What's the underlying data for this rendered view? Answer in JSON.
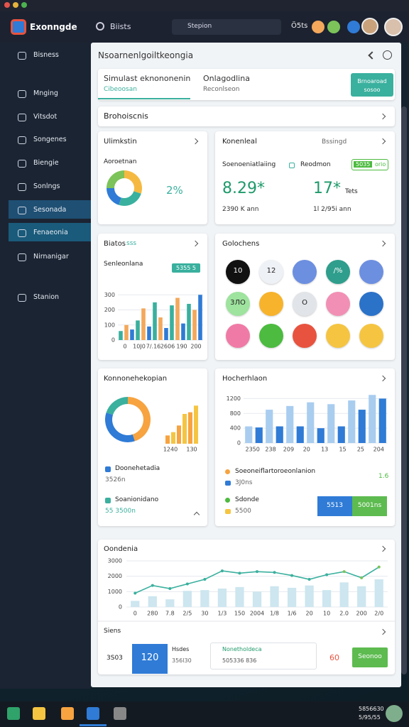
{
  "app": {
    "name": "Exonngde",
    "search": "Biists",
    "dropdown": "Stepion",
    "status": "Ö5ts"
  },
  "sidebar": [
    "Bisness",
    "Mnging",
    "Vitsdot",
    "Songenes",
    "Biengie",
    "Sonlngs",
    "Sesonada",
    "Fenaeonia",
    "Nirnanigar",
    "Stanion"
  ],
  "header": {
    "title": "Nsoarnenlgoiltkeongia"
  },
  "tabs": [
    {
      "title": "Simulast eknononenin",
      "sub": "Cibeoosan"
    },
    {
      "title": "Onlagodlina",
      "sub": "Reconlseon"
    }
  ],
  "tab_button": "Brnoaroad sosoo",
  "section": "Brohoiscnis",
  "card1": {
    "title": "Ulimkstin",
    "label": "Aoroetnan",
    "value_text": "2%",
    "donut": {
      "values": [
        30,
        25,
        20,
        25
      ],
      "colors": [
        "#f5b942",
        "#3ab09e",
        "#2f7bd6",
        "#7cc35a"
      ]
    }
  },
  "card2": {
    "title": "Konenleal",
    "link": "Bssingd",
    "row_label": "Soenoeniatlaiing",
    "toggle_label": "Reodmon",
    "toggle_on": "5035",
    "toggle_off": "orio",
    "metrics": [
      {
        "value": "8.29*",
        "sub": "2390 K ann"
      },
      {
        "value": "17*",
        "unit": "Tets",
        "sub": "1l 2/95i ann"
      }
    ]
  },
  "card3": {
    "title": "Biatos",
    "title_tag": "sss",
    "label": "Senleonlana",
    "badge": "5355 5",
    "chart": {
      "values": [
        60,
        100,
        70,
        130,
        210,
        90,
        250,
        150,
        80,
        230,
        280,
        110,
        240,
        200,
        300
      ],
      "colors": [
        "#3ab09e",
        "#f3a85b",
        "#2f7bd6"
      ],
      "ylim": [
        0,
        400
      ],
      "yticks": [
        0,
        100,
        200,
        300
      ],
      "xlabels": [
        "0",
        "10J0",
        "7/.16",
        "2606",
        "190",
        "200"
      ]
    }
  },
  "card4": {
    "title": "Golochens",
    "circles": [
      {
        "label": "10",
        "color": "#111111"
      },
      {
        "label": "12",
        "color": "#eef1f6"
      },
      {
        "color": "#6c8fe0"
      },
      {
        "label": "/%",
        "color": "#2f9e8c"
      },
      {
        "color": "#6c8fe0"
      },
      {
        "label": "3ЛO",
        "color": "#9ee39e"
      },
      {
        "color": "#f7b32b"
      },
      {
        "label": "O",
        "color": "#e1e4e8"
      },
      {
        "color": "#f28fb5"
      },
      {
        "color": "#2b72c9"
      },
      {
        "color": "#f07aa6"
      },
      {
        "color": "#4cbb3f"
      },
      {
        "color": "#e8533f"
      },
      {
        "color": "#f5c542"
      },
      {
        "color": "#f5c542"
      }
    ]
  },
  "card5": {
    "title": "Konnonehekopian",
    "donut": {
      "values": [
        45,
        35,
        20
      ],
      "colors": [
        "#f7a340",
        "#2f7bd6",
        "#3ab09e"
      ]
    },
    "bars": {
      "values": [
        250,
        350,
        550,
        900,
        950,
        1150
      ],
      "colors": [
        "#f7a340",
        "#f5c542"
      ],
      "ylim": [
        0,
        1200
      ],
      "xlabels": [
        "1240",
        "130"
      ]
    },
    "items": [
      {
        "title": "Doonehetadia",
        "sub": "3526n"
      },
      {
        "title": "Soanionidano",
        "sub": "55 3500n"
      }
    ]
  },
  "card6": {
    "title": "Hocherhlaon",
    "chart": {
      "values": [
        450,
        420,
        900,
        450,
        1000,
        450,
        1100,
        400,
        1050,
        450,
        1150,
        900,
        1300,
        1200
      ],
      "colors": [
        "#a9cdef",
        "#2f7bd6"
      ],
      "ylim": [
        0,
        1400
      ],
      "yticks": [
        0,
        400,
        800,
        1200
      ],
      "xlabels": [
        "2350",
        "238",
        "209",
        "20",
        "13",
        "15",
        "25",
        "204"
      ]
    },
    "legend": [
      {
        "title": "Soeoneiflartoroeonlanion",
        "sub": "3J0ns"
      },
      {
        "title": "Sdonde",
        "sub": "5500"
      }
    ],
    "side_text": "1.6",
    "buttons": [
      "5513",
      "5001ns"
    ]
  },
  "card7": {
    "title": "Oondenia",
    "chart": {
      "bars": [
        400,
        700,
        500,
        1050,
        1100,
        1200,
        1300,
        1000,
        1350,
        1250,
        1400,
        1100,
        1600,
        1350,
        1800
      ],
      "line": [
        900,
        1400,
        1200,
        1500,
        1800,
        2350,
        2200,
        2300,
        2250,
        2050,
        1800,
        2100,
        2300,
        1900,
        2600
      ],
      "ylim": [
        0,
        3000
      ],
      "yticks": [
        0,
        1000,
        2000,
        3000
      ],
      "xlabels": [
        "0",
        "280",
        "7.8",
        "2/5",
        "30",
        "1/3",
        "150",
        "2004",
        "1/8",
        "1/6",
        "20",
        "10",
        "2.0",
        "200",
        "2/0"
      ]
    }
  },
  "bottom": {
    "title": "Siens",
    "label": "3S03",
    "box_value": "120",
    "box_title": "Hsdes",
    "box_sub": "356l30",
    "field_title": "Nonetholdeca",
    "field_sub": "505336 836",
    "warning": "60",
    "button": "Seonoo"
  },
  "taskbar": {
    "time": "5856630",
    "date": "5/95/55"
  }
}
